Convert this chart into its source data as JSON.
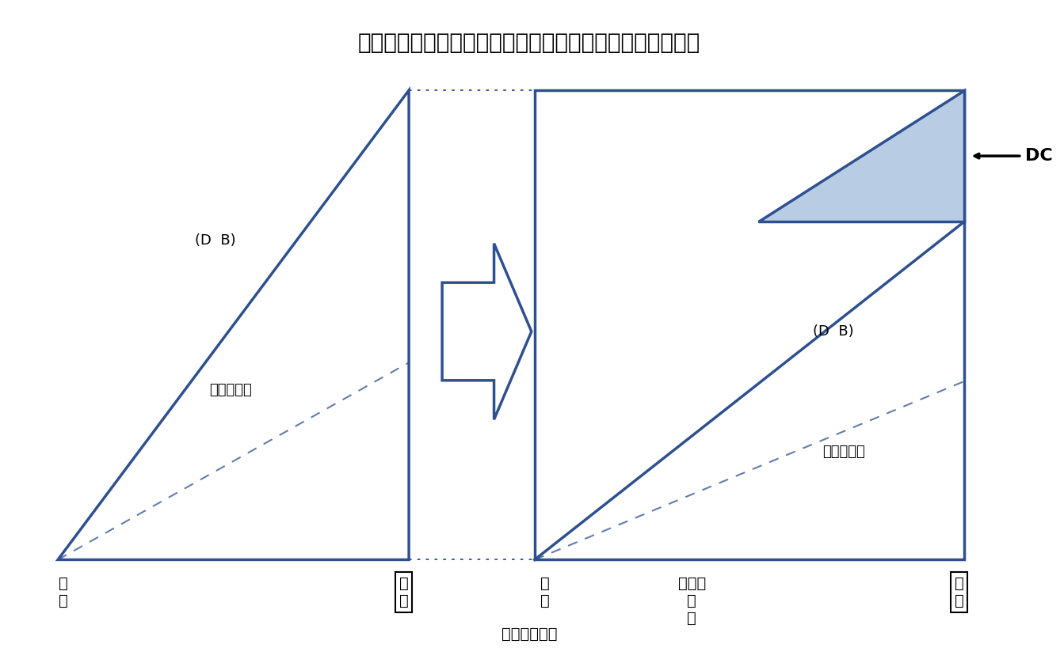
{
  "title": "【図表３】退職金制度における企業型ＤＣ移行のイメージ",
  "title_fontsize": 20,
  "note": "注：筆者作成",
  "note_fontsize": 14,
  "dark_blue": "#2E5090",
  "light_blue_fill": "#B8CCE4",
  "background": "#FFFFFF",
  "label_DB_left": "(D  B)",
  "label_ichiji_left": "（一時金）",
  "label_DB_right": "(D  B)",
  "label_ichiji_right": "（一時金）",
  "label_DC_arrow": "←DC",
  "label_nyusha1": "入\n社",
  "label_taishoku1": "退\n職",
  "label_nyusha2": "入\n社",
  "label_DC_intro": "Ｄ　Ｃ\n導\n入",
  "label_taishoku2": "退\n職",
  "lw": 2.5,
  "lw_thin": 1.5
}
